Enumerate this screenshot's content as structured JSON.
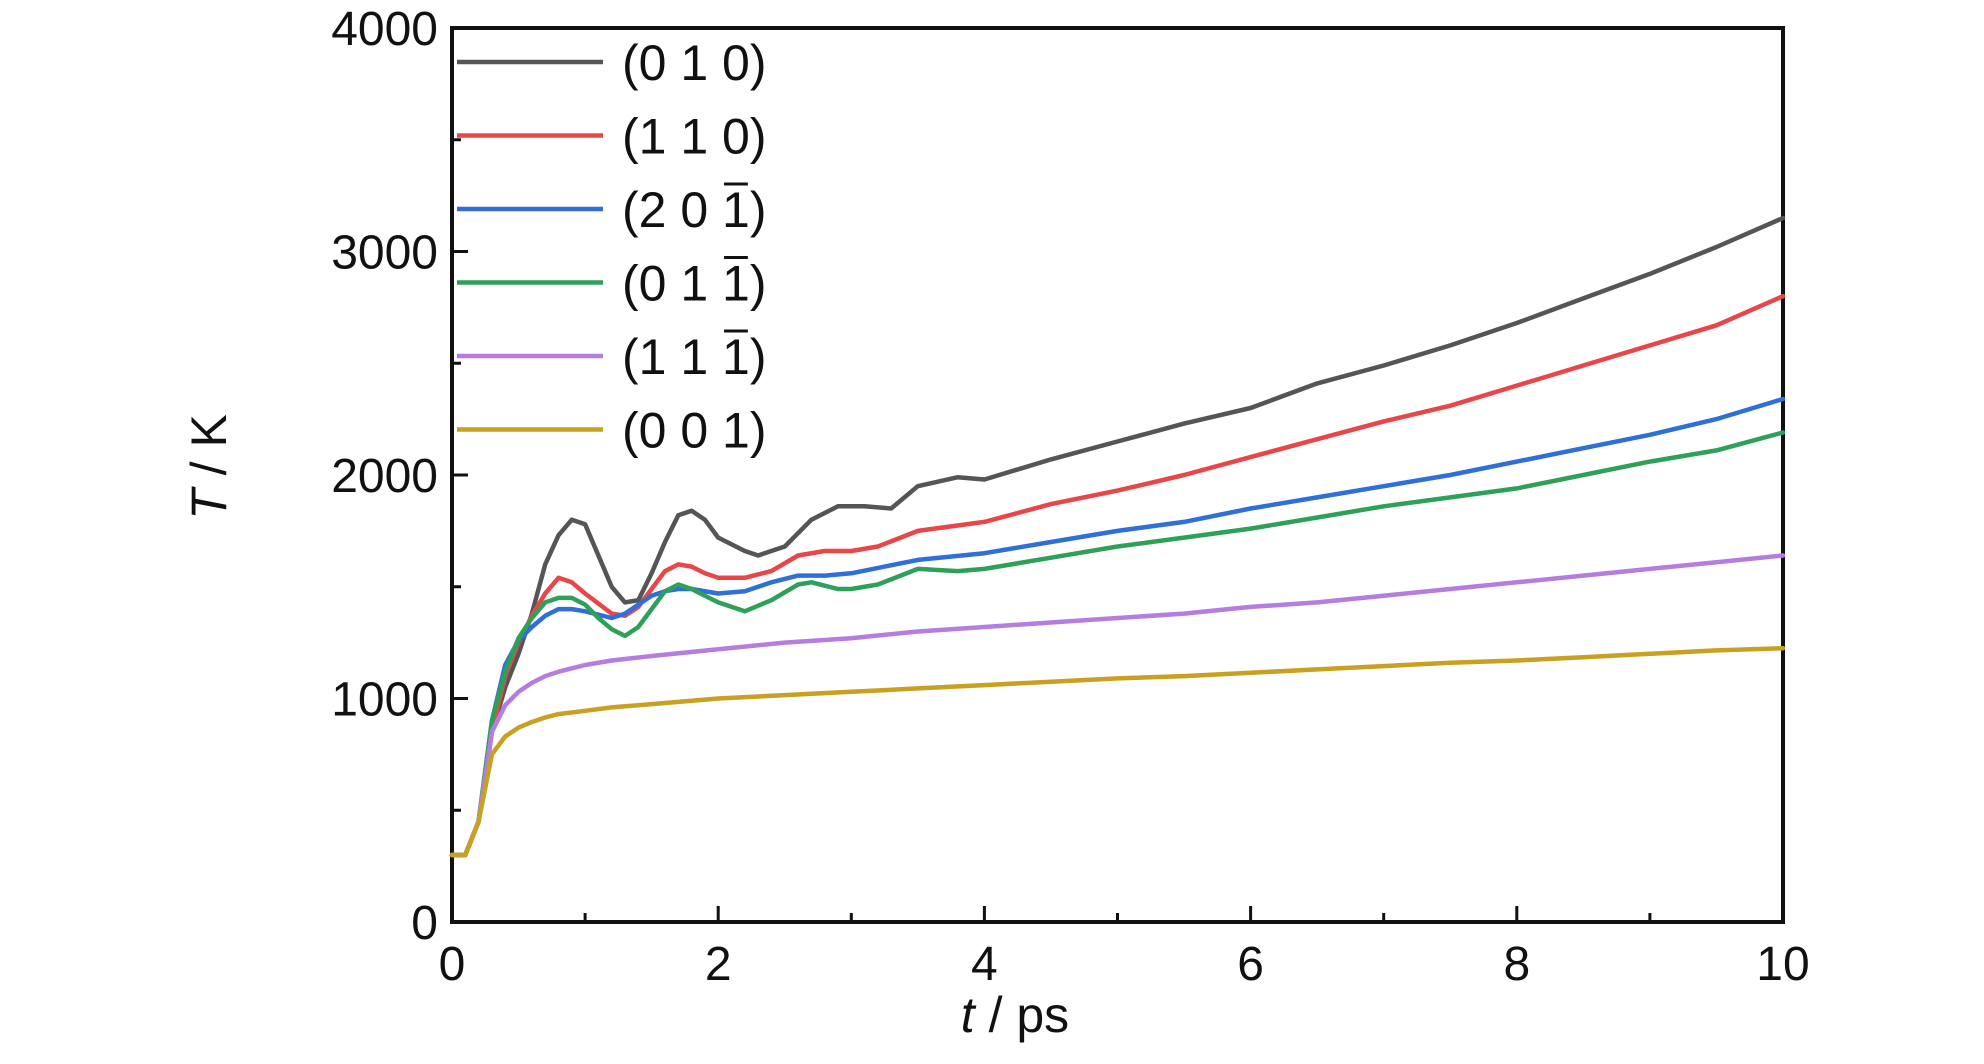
{
  "chart_data": {
    "type": "line",
    "xlabel": "t / ps",
    "ylabel": "T / K",
    "xlabel_parts": {
      "var": "t",
      "unit": " / ps"
    },
    "ylabel_parts": {
      "var": "T",
      "unit": " / K"
    },
    "xlim": [
      0,
      10
    ],
    "ylim": [
      0,
      4000
    ],
    "xticks": [
      "0",
      "2",
      "4",
      "6",
      "8",
      "10"
    ],
    "yticks": [
      "0",
      "1000",
      "2000",
      "3000",
      "4000"
    ],
    "grid": false,
    "legend_position": "top-left",
    "series": [
      {
        "name": "(0 1 0)",
        "label": {
          "text": "(0 1 0)",
          "bar_digit": -1
        },
        "color": "#555555",
        "points": [
          [
            0,
            300
          ],
          [
            0.1,
            300
          ],
          [
            0.2,
            450
          ],
          [
            0.3,
            850
          ],
          [
            0.4,
            1050
          ],
          [
            0.5,
            1200
          ],
          [
            0.6,
            1380
          ],
          [
            0.7,
            1600
          ],
          [
            0.8,
            1730
          ],
          [
            0.9,
            1800
          ],
          [
            1.0,
            1780
          ],
          [
            1.1,
            1640
          ],
          [
            1.2,
            1500
          ],
          [
            1.3,
            1430
          ],
          [
            1.4,
            1440
          ],
          [
            1.5,
            1560
          ],
          [
            1.6,
            1700
          ],
          [
            1.7,
            1820
          ],
          [
            1.8,
            1840
          ],
          [
            1.9,
            1800
          ],
          [
            2.0,
            1720
          ],
          [
            2.2,
            1660
          ],
          [
            2.3,
            1640
          ],
          [
            2.5,
            1680
          ],
          [
            2.7,
            1800
          ],
          [
            2.9,
            1860
          ],
          [
            3.1,
            1860
          ],
          [
            3.3,
            1850
          ],
          [
            3.5,
            1950
          ],
          [
            3.8,
            1990
          ],
          [
            4.0,
            1980
          ],
          [
            4.5,
            2070
          ],
          [
            5.0,
            2150
          ],
          [
            5.5,
            2230
          ],
          [
            6.0,
            2300
          ],
          [
            6.5,
            2410
          ],
          [
            7.0,
            2490
          ],
          [
            7.5,
            2580
          ],
          [
            8.0,
            2680
          ],
          [
            8.5,
            2790
          ],
          [
            9.0,
            2900
          ],
          [
            9.5,
            3020
          ],
          [
            10.0,
            3150
          ]
        ]
      },
      {
        "name": "(1 1 0)",
        "label": {
          "text": "(1 1 0)",
          "bar_digit": -1
        },
        "color": "#e8474a",
        "points": [
          [
            0,
            300
          ],
          [
            0.1,
            300
          ],
          [
            0.2,
            450
          ],
          [
            0.3,
            850
          ],
          [
            0.4,
            1100
          ],
          [
            0.5,
            1250
          ],
          [
            0.6,
            1370
          ],
          [
            0.7,
            1470
          ],
          [
            0.8,
            1540
          ],
          [
            0.9,
            1520
          ],
          [
            1.0,
            1470
          ],
          [
            1.2,
            1380
          ],
          [
            1.3,
            1370
          ],
          [
            1.4,
            1410
          ],
          [
            1.5,
            1490
          ],
          [
            1.6,
            1570
          ],
          [
            1.7,
            1600
          ],
          [
            1.8,
            1590
          ],
          [
            1.9,
            1560
          ],
          [
            2.0,
            1540
          ],
          [
            2.2,
            1540
          ],
          [
            2.4,
            1570
          ],
          [
            2.6,
            1640
          ],
          [
            2.8,
            1660
          ],
          [
            3.0,
            1660
          ],
          [
            3.2,
            1680
          ],
          [
            3.5,
            1750
          ],
          [
            4.0,
            1790
          ],
          [
            4.5,
            1870
          ],
          [
            5.0,
            1930
          ],
          [
            5.5,
            2000
          ],
          [
            6.0,
            2080
          ],
          [
            6.5,
            2160
          ],
          [
            7.0,
            2240
          ],
          [
            7.5,
            2310
          ],
          [
            8.0,
            2400
          ],
          [
            8.5,
            2490
          ],
          [
            9.0,
            2580
          ],
          [
            9.5,
            2670
          ],
          [
            10.0,
            2800
          ]
        ]
      },
      {
        "name": "(2 0 1̄)",
        "label": {
          "text": "(2 0 1)",
          "bar_digit": 2
        },
        "color": "#2e6fd8",
        "points": [
          [
            0,
            300
          ],
          [
            0.1,
            300
          ],
          [
            0.2,
            450
          ],
          [
            0.3,
            900
          ],
          [
            0.4,
            1150
          ],
          [
            0.5,
            1260
          ],
          [
            0.6,
            1320
          ],
          [
            0.7,
            1370
          ],
          [
            0.8,
            1400
          ],
          [
            0.9,
            1400
          ],
          [
            1.0,
            1390
          ],
          [
            1.2,
            1360
          ],
          [
            1.3,
            1380
          ],
          [
            1.4,
            1420
          ],
          [
            1.5,
            1460
          ],
          [
            1.6,
            1480
          ],
          [
            1.7,
            1490
          ],
          [
            1.8,
            1490
          ],
          [
            2.0,
            1470
          ],
          [
            2.2,
            1480
          ],
          [
            2.4,
            1520
          ],
          [
            2.6,
            1550
          ],
          [
            2.8,
            1550
          ],
          [
            3.0,
            1560
          ],
          [
            3.5,
            1620
          ],
          [
            4.0,
            1650
          ],
          [
            4.5,
            1700
          ],
          [
            5.0,
            1750
          ],
          [
            5.5,
            1790
          ],
          [
            6.0,
            1850
          ],
          [
            6.5,
            1900
          ],
          [
            7.0,
            1950
          ],
          [
            7.5,
            2000
          ],
          [
            8.0,
            2060
          ],
          [
            8.5,
            2120
          ],
          [
            9.0,
            2180
          ],
          [
            9.5,
            2250
          ],
          [
            10.0,
            2340
          ]
        ]
      },
      {
        "name": "(0 1 1̄)",
        "label": {
          "text": "(0 1 1)",
          "bar_digit": 2
        },
        "color": "#2fa05a",
        "points": [
          [
            0,
            300
          ],
          [
            0.1,
            300
          ],
          [
            0.2,
            450
          ],
          [
            0.3,
            900
          ],
          [
            0.4,
            1120
          ],
          [
            0.5,
            1270
          ],
          [
            0.6,
            1360
          ],
          [
            0.7,
            1430
          ],
          [
            0.8,
            1450
          ],
          [
            0.9,
            1450
          ],
          [
            1.0,
            1420
          ],
          [
            1.1,
            1360
          ],
          [
            1.2,
            1310
          ],
          [
            1.3,
            1280
          ],
          [
            1.4,
            1320
          ],
          [
            1.5,
            1400
          ],
          [
            1.6,
            1480
          ],
          [
            1.7,
            1510
          ],
          [
            1.8,
            1490
          ],
          [
            1.9,
            1460
          ],
          [
            2.0,
            1430
          ],
          [
            2.2,
            1390
          ],
          [
            2.4,
            1440
          ],
          [
            2.6,
            1510
          ],
          [
            2.7,
            1520
          ],
          [
            2.9,
            1490
          ],
          [
            3.0,
            1490
          ],
          [
            3.2,
            1510
          ],
          [
            3.5,
            1580
          ],
          [
            3.8,
            1570
          ],
          [
            4.0,
            1580
          ],
          [
            4.5,
            1630
          ],
          [
            5.0,
            1680
          ],
          [
            5.5,
            1720
          ],
          [
            6.0,
            1760
          ],
          [
            6.5,
            1810
          ],
          [
            7.0,
            1860
          ],
          [
            7.5,
            1900
          ],
          [
            8.0,
            1940
          ],
          [
            8.5,
            2000
          ],
          [
            9.0,
            2060
          ],
          [
            9.5,
            2110
          ],
          [
            10.0,
            2190
          ]
        ]
      },
      {
        "name": "(1 1 1̄)",
        "label": {
          "text": "(1 1 1)",
          "bar_digit": 2
        },
        "color": "#b57de0",
        "points": [
          [
            0,
            300
          ],
          [
            0.1,
            300
          ],
          [
            0.2,
            450
          ],
          [
            0.3,
            850
          ],
          [
            0.4,
            970
          ],
          [
            0.5,
            1030
          ],
          [
            0.6,
            1070
          ],
          [
            0.7,
            1100
          ],
          [
            0.8,
            1120
          ],
          [
            1.0,
            1150
          ],
          [
            1.2,
            1170
          ],
          [
            1.5,
            1190
          ],
          [
            2.0,
            1220
          ],
          [
            2.5,
            1250
          ],
          [
            3.0,
            1270
          ],
          [
            3.5,
            1300
          ],
          [
            4.0,
            1320
          ],
          [
            4.5,
            1340
          ],
          [
            5.0,
            1360
          ],
          [
            5.5,
            1380
          ],
          [
            6.0,
            1410
          ],
          [
            6.5,
            1430
          ],
          [
            7.0,
            1460
          ],
          [
            7.5,
            1490
          ],
          [
            8.0,
            1520
          ],
          [
            8.5,
            1550
          ],
          [
            9.0,
            1580
          ],
          [
            9.5,
            1610
          ],
          [
            10.0,
            1640
          ]
        ]
      },
      {
        "name": "(0 0 1)",
        "label": {
          "text": "(0 0 1)",
          "bar_digit": -1
        },
        "color": "#c9a020",
        "points": [
          [
            0,
            300
          ],
          [
            0.1,
            300
          ],
          [
            0.2,
            450
          ],
          [
            0.3,
            750
          ],
          [
            0.4,
            830
          ],
          [
            0.5,
            870
          ],
          [
            0.6,
            895
          ],
          [
            0.7,
            915
          ],
          [
            0.8,
            930
          ],
          [
            1.0,
            945
          ],
          [
            1.2,
            960
          ],
          [
            1.5,
            975
          ],
          [
            2.0,
            1000
          ],
          [
            2.5,
            1015
          ],
          [
            3.0,
            1030
          ],
          [
            3.5,
            1045
          ],
          [
            4.0,
            1060
          ],
          [
            4.5,
            1075
          ],
          [
            5.0,
            1090
          ],
          [
            5.5,
            1100
          ],
          [
            6.0,
            1115
          ],
          [
            6.5,
            1130
          ],
          [
            7.0,
            1145
          ],
          [
            7.5,
            1160
          ],
          [
            8.0,
            1170
          ],
          [
            8.5,
            1185
          ],
          [
            9.0,
            1200
          ],
          [
            9.5,
            1215
          ],
          [
            10.0,
            1225
          ]
        ]
      }
    ]
  }
}
